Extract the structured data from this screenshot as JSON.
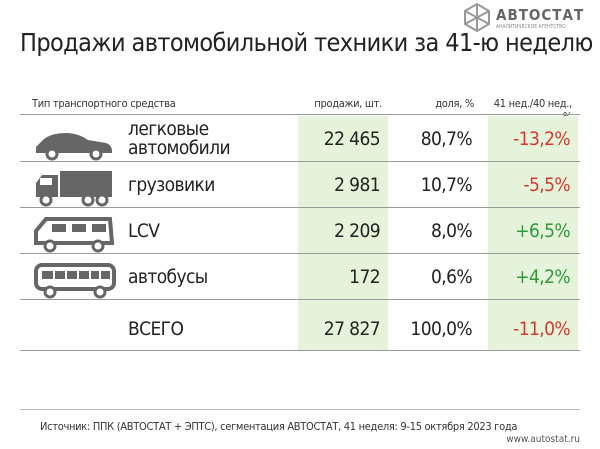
{
  "header": {
    "title": "Продажи автомобильной техники за 41-ю неделю",
    "logo": "АВТОСТАТ",
    "logo_subtitle": "АНАЛИТИЧЕСКОЕ АГЕНТСТВО"
  },
  "table": {
    "columns": [
      "Тип транспортного средства",
      "продажи, шт.",
      "доля, %",
      "41 нед./40 нед., %"
    ],
    "rows": [
      [
        "легковые автомобили",
        "22 465",
        "80,7%",
        "-13,2%"
      ],
      [
        "грузовики",
        "2 981",
        "10,7%",
        "-5,5%"
      ],
      [
        "LCV",
        "2 209",
        "8,0%",
        "+6,5%"
      ],
      [
        "автобусы",
        "172",
        "0,6%",
        "+4,2%"
      ]
    ],
    "total": [
      "ВСЕГО",
      "27 827",
      "100,0%",
      "-11,0%"
    ]
  },
  "footer": {
    "source": "Источник: ППК (АВТОСТАТ + ЭПТС), сегментация АВТОСТАТ, 41 неделя: 9-15 октября 2023 года",
    "url": "www.autostat.ru"
  }
}
